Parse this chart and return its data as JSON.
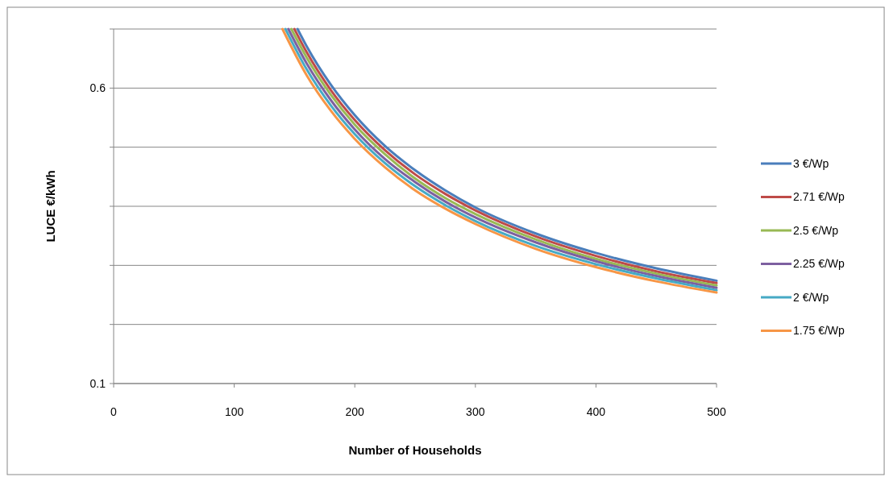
{
  "chart_data": {
    "type": "line",
    "xlabel": "Number of Households",
    "ylabel": "LUCE €/kWh",
    "xlim": [
      0,
      500
    ],
    "xticks": [
      0,
      100,
      200,
      300,
      400,
      500
    ],
    "ylim": [
      0.1,
      0.7
    ],
    "yticks": [
      0.1,
      {
        "value": 0.2,
        "label": null
      },
      {
        "value": 0.3,
        "label": null
      },
      {
        "value": 0.4,
        "label": null
      },
      {
        "value": 0.5,
        "label": null
      },
      0.6,
      {
        "value": 0.7,
        "label": null
      }
    ],
    "grid": "y",
    "legend": "right",
    "marker": "none",
    "line_style": "solid",
    "series": [
      {
        "name": "3 €/Wp",
        "color": "#4a7ebb",
        "x": [
          152.5,
          160,
          180,
          200,
          225,
          250,
          275,
          300,
          350,
          400,
          450,
          500
        ],
        "values": [
          0.7,
          0.671,
          0.606,
          0.554,
          0.502,
          0.461,
          0.427,
          0.398,
          0.354,
          0.321,
          0.295,
          0.274
        ]
      },
      {
        "name": "2.71 €/Wp",
        "color": "#be4b48",
        "x": [
          149.9,
          160,
          180,
          200,
          225,
          250,
          275,
          300,
          350,
          400,
          450,
          500
        ],
        "values": [
          0.7,
          0.661,
          0.597,
          0.546,
          0.495,
          0.454,
          0.421,
          0.393,
          0.349,
          0.316,
          0.29,
          0.27
        ]
      },
      {
        "name": "2.5 €/Wp",
        "color": "#98b954",
        "x": [
          147.4,
          160,
          180,
          200,
          225,
          250,
          275,
          300,
          350,
          400,
          450,
          500
        ],
        "values": [
          0.7,
          0.652,
          0.589,
          0.538,
          0.488,
          0.447,
          0.414,
          0.387,
          0.344,
          0.311,
          0.286,
          0.266
        ]
      },
      {
        "name": "2.25 €/Wp",
        "color": "#7d60a0",
        "x": [
          144.9,
          160,
          180,
          200,
          225,
          250,
          275,
          300,
          350,
          400,
          450,
          500
        ],
        "values": [
          0.7,
          0.642,
          0.58,
          0.53,
          0.48,
          0.441,
          0.408,
          0.381,
          0.339,
          0.307,
          0.282,
          0.262
        ]
      },
      {
        "name": "2 €/Wp",
        "color": "#46aac5",
        "x": [
          142.5,
          160,
          180,
          200,
          225,
          250,
          275,
          300,
          350,
          400,
          450,
          500
        ],
        "values": [
          0.7,
          0.632,
          0.571,
          0.522,
          0.473,
          0.434,
          0.402,
          0.375,
          0.333,
          0.302,
          0.278,
          0.258
        ]
      },
      {
        "name": "1.75 €/Wp",
        "color": "#f79646",
        "x": [
          140,
          160,
          180,
          200,
          225,
          250,
          275,
          300,
          350,
          400,
          450,
          500
        ],
        "values": [
          0.7,
          0.622,
          0.562,
          0.514,
          0.466,
          0.427,
          0.396,
          0.37,
          0.328,
          0.297,
          0.273,
          0.254
        ]
      }
    ]
  }
}
